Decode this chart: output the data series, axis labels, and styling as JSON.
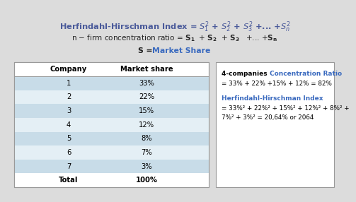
{
  "bg_color": "#dcdcdc",
  "title_color": "#4a5a9a",
  "blue_color": "#3a6abf",
  "dark_blue": "#3a3a7a",
  "header_text_color": "#222222",
  "table_row_alt1": "#c8dce8",
  "table_row_alt2": "#e4eff5",
  "table_border_color": "#999999",
  "companies": [
    "1",
    "2",
    "3",
    "4",
    "5",
    "6",
    "7",
    "Total"
  ],
  "market_shares": [
    "33%",
    "22%",
    "15%",
    "12%",
    "8%",
    "7%",
    "3%",
    "100%"
  ],
  "cr_title_black": "4-companies ",
  "cr_title_blue": "Concentration Ratio",
  "cr_formula": "= 33% + 22% +15% + 12% = 82%",
  "hhi_title": "Herfindahl-Hirschman Index",
  "hhi_formula1": "= 33%² + 22%² + 15%² + 12%² + 8%² +",
  "hhi_formula2": "7%² + 3%² = 20,64% or 2064"
}
